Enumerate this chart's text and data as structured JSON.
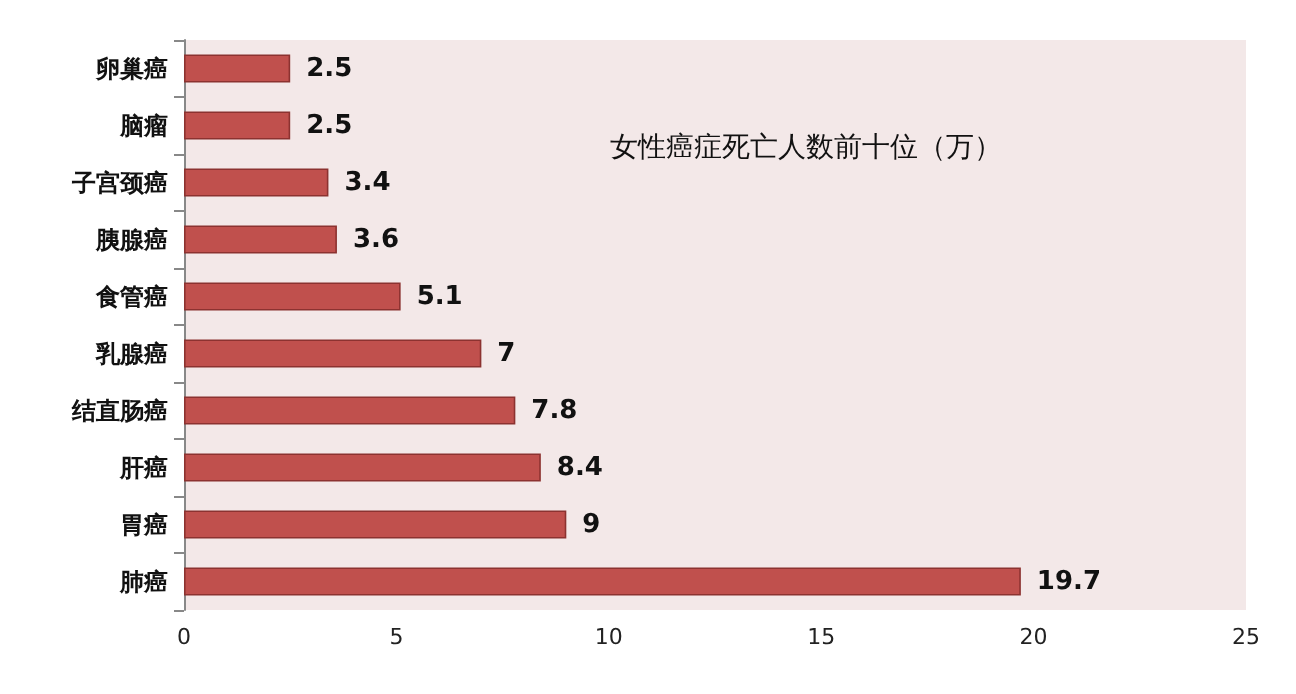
{
  "chart_data": {
    "type": "bar",
    "orientation": "horizontal",
    "title": "女性癌症死亡人数前十位（万）",
    "categories": [
      "卵巢癌",
      "脑瘤",
      "子宫颈癌",
      "胰腺癌",
      "食管癌",
      "乳腺癌",
      "结直肠癌",
      "肝癌",
      "胃癌",
      "肺癌"
    ],
    "values": [
      2.5,
      2.5,
      3.4,
      3.6,
      5.1,
      7,
      7.8,
      8.4,
      9,
      19.7
    ],
    "color": "#c0504d",
    "xlim": [
      0,
      25
    ],
    "xticks": [
      0,
      5,
      10,
      15,
      20,
      25
    ],
    "grid": false,
    "data_labels": true
  }
}
